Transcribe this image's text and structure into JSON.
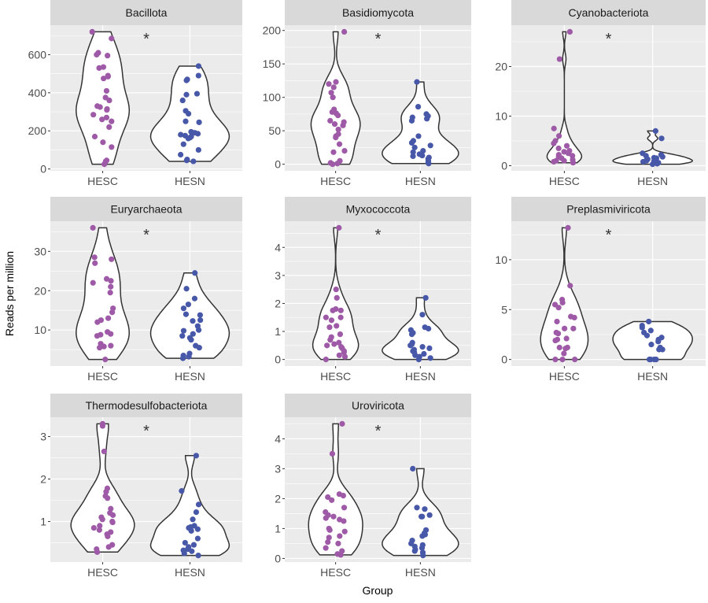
{
  "chart_data": {
    "type": "violin",
    "xlabel": "Group",
    "ylabel": "Reads per million",
    "categories": [
      "HESC",
      "HESN"
    ],
    "colors": {
      "HESC": "#9e5aa7",
      "HESN": "#4858a8"
    },
    "grid": true,
    "significance_marker": "*",
    "panels": [
      {
        "title": "Bacillota",
        "yticks": [
          0,
          200,
          400,
          600
        ],
        "HESC": [
          720,
          685,
          610,
          600,
          595,
          535,
          530,
          490,
          485,
          475,
          410,
          375,
          360,
          330,
          325,
          315,
          310,
          285,
          270,
          260,
          250,
          220,
          170,
          140,
          115,
          45,
          40,
          25
        ],
        "HESN": [
          540,
          490,
          470,
          465,
          395,
          390,
          360,
          305,
          290,
          250,
          245,
          195,
          190,
          185,
          180,
          175,
          170,
          165,
          160,
          130,
          100,
          75,
          50,
          45,
          40
        ]
      },
      {
        "title": "Basidiomycota",
        "yticks": [
          0,
          50,
          100,
          150,
          200
        ],
        "HESC": [
          198,
          123,
          120,
          115,
          107,
          100,
          82,
          78,
          76,
          73,
          65,
          63,
          60,
          58,
          52,
          45,
          42,
          40,
          30,
          20,
          18,
          5,
          2,
          1,
          0
        ],
        "HESN": [
          123,
          86,
          75,
          72,
          70,
          68,
          65,
          42,
          35,
          32,
          28,
          25,
          20,
          18,
          15,
          13,
          12,
          10,
          8,
          5,
          2,
          1
        ]
      },
      {
        "title": "Cyanobacteriota",
        "yticks": [
          0,
          10,
          20
        ],
        "HESC": [
          27,
          21.5,
          7.5,
          6,
          5,
          4.5,
          4,
          3.5,
          3,
          2.8,
          2.5,
          2.2,
          2,
          1.8,
          1.5,
          1.2,
          1,
          1,
          0.8,
          0.6
        ],
        "HESN": [
          7,
          5.5,
          2.5,
          2.2,
          2,
          1.8,
          1.6,
          1.5,
          1.3,
          1.2,
          1,
          0.9,
          0.8,
          0.6,
          0.5,
          0.4,
          0.3
        ]
      },
      {
        "title": "Euryarchaeota",
        "yticks": [
          10,
          20,
          30
        ],
        "HESC": [
          36,
          28.5,
          28,
          27,
          23,
          22.5,
          22,
          21,
          19.5,
          15.5,
          14.5,
          13,
          12.5,
          12,
          9.5,
          9,
          8.8,
          8.5,
          6.5,
          6,
          5.8,
          5.5,
          2.5
        ],
        "HESN": [
          24.5,
          20.5,
          18,
          16.5,
          15.5,
          14,
          13.8,
          12.5,
          12.3,
          11,
          10,
          9.8,
          9,
          8.5,
          8,
          7.5,
          6,
          5.5,
          4,
          3.5,
          3.2,
          2.8
        ]
      },
      {
        "title": "Myxococcota",
        "yticks": [
          0,
          1,
          2,
          3,
          4
        ],
        "HESC": [
          4.7,
          2.5,
          2.2,
          1.8,
          1.75,
          1.75,
          1.5,
          1.5,
          1.4,
          1.2,
          1.15,
          0.9,
          0.8,
          0.7,
          0.6,
          0.55,
          0.5,
          0.45,
          0.4,
          0.3,
          0.25,
          0.15,
          0.1,
          0
        ],
        "HESN": [
          2.2,
          1.6,
          1.15,
          1.1,
          1.05,
          0.95,
          0.9,
          0.6,
          0.55,
          0.5,
          0.45,
          0.4,
          0.35,
          0.3,
          0.25,
          0.2,
          0.15,
          0.1,
          0.05,
          0
        ]
      },
      {
        "title": "Preplasmiviricota",
        "yticks": [
          0,
          5,
          10
        ],
        "HESC": [
          13.2,
          7.4,
          6,
          5.7,
          5.5,
          5.2,
          4.3,
          4.2,
          3.8,
          3.1,
          3.1,
          2.7,
          2.6,
          2.1,
          2,
          1.9,
          1.2,
          1.2,
          1.1,
          0.6,
          0,
          0,
          0
        ],
        "HESN": [
          3.8,
          3.4,
          3.2,
          2.9,
          2.7,
          2.4,
          2.2,
          2,
          1.8,
          1.5,
          1.2,
          1,
          1,
          0,
          0,
          0,
          0
        ]
      },
      {
        "title": "Thermodesulfobacteriota",
        "yticks": [
          1,
          2,
          3
        ],
        "HESC": [
          3.3,
          3.25,
          2.65,
          1.78,
          1.7,
          1.6,
          1.55,
          1.3,
          1.2,
          1.15,
          1.1,
          1.05,
          1,
          0.98,
          0.9,
          0.85,
          0.8,
          0.75,
          0.7,
          0.65,
          0.45,
          0.4,
          0.35,
          0.28
        ],
        "HESN": [
          2.55,
          1.72,
          1.4,
          1.22,
          1.05,
          0.9,
          0.87,
          0.85,
          0.82,
          0.78,
          0.6,
          0.5,
          0.45,
          0.4,
          0.35,
          0.32,
          0.3,
          0.25,
          0.2
        ]
      },
      {
        "title": "Uroviricota",
        "yticks": [
          0,
          1,
          2,
          3,
          4
        ],
        "HESC": [
          4.5,
          3.5,
          2.15,
          2.1,
          2.05,
          1.95,
          1.7,
          1.55,
          1.45,
          1.4,
          1.35,
          1.3,
          1.25,
          1,
          0.95,
          0.9,
          0.75,
          0.7,
          0.55,
          0.5,
          0.35,
          0.25,
          0.15,
          0.12
        ],
        "HESN": [
          3,
          1.7,
          1.65,
          1.45,
          1.4,
          1.4,
          0.95,
          0.85,
          0.8,
          0.75,
          0.6,
          0.5,
          0.45,
          0.4,
          0.35,
          0.3,
          0.25,
          0.2,
          0.1
        ]
      }
    ]
  }
}
